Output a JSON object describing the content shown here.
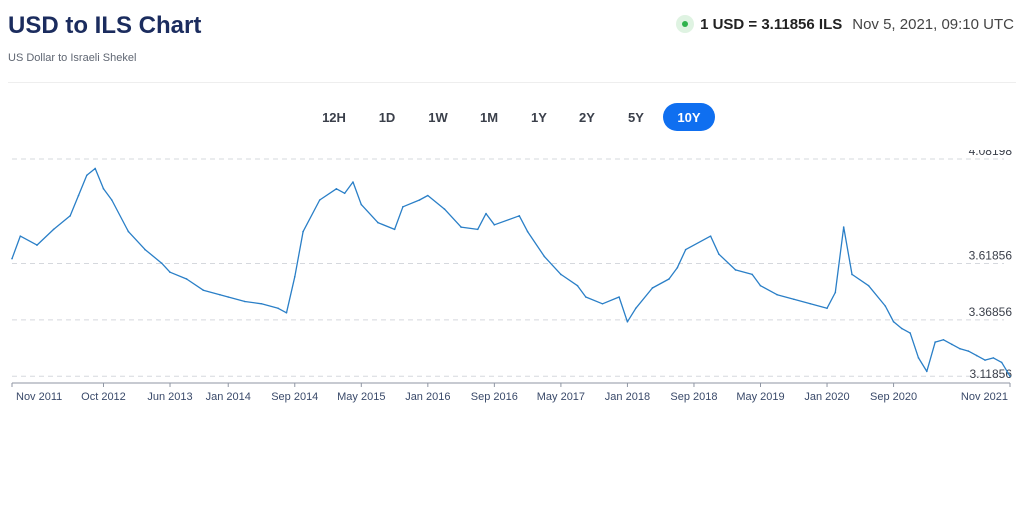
{
  "header": {
    "title": "USD to ILS Chart",
    "subtitle": "US Dollar to Israeli Shekel",
    "rate_text": "1 USD = 3.11856 ILS",
    "timestamp": "Nov 5, 2021, 09:10 UTC",
    "live_icon": "live-status-dot-icon"
  },
  "ranges": {
    "options": [
      "12H",
      "1D",
      "1W",
      "1M",
      "1Y",
      "2Y",
      "5Y",
      "10Y"
    ],
    "selected": "10Y"
  },
  "colors": {
    "line": "#2a7fc7",
    "accent": "#0f6ff0",
    "title": "#1b2c5e",
    "grid": "#d5d8dd"
  },
  "chart_data": {
    "type": "line",
    "title": "",
    "xlabel": "",
    "ylabel": "",
    "ylim": [
      3.0885,
      4.122
    ],
    "grid": "horizontal dashed",
    "y_ticks": [
      "4.08198",
      "3.61856",
      "3.36856",
      "3.11856"
    ],
    "x_ticks": [
      "Nov 2011",
      "Oct 2012",
      "Jun 2013",
      "Jan 2014",
      "Sep 2014",
      "May 2015",
      "Jan 2016",
      "Sep 2016",
      "May 2017",
      "Jan 2018",
      "Sep 2018",
      "May 2019",
      "Jan 2020",
      "Sep 2020",
      "Nov 2021"
    ],
    "x_range": [
      "Nov 2011",
      "Nov 2021"
    ],
    "series": [
      {
        "x": [
          "Nov 2011",
          "Dec 2011",
          "Feb 2012",
          "Apr 2012",
          "Jun 2012",
          "Jul 2012",
          "Aug 2012",
          "Sep 2012",
          "Oct 2012",
          "Nov 2012",
          "Jan 2013",
          "Mar 2013",
          "May 2013",
          "Jun 2013",
          "Aug 2013",
          "Oct 2013",
          "Dec 2013",
          "Jan 2014",
          "Mar 2014",
          "May 2014",
          "Jul 2014",
          "Aug 2014",
          "Sep 2014",
          "Oct 2014",
          "Dec 2014",
          "Feb 2015",
          "Mar 2015",
          "Apr 2015",
          "May 2015",
          "Jul 2015",
          "Sep 2015",
          "Oct 2015",
          "Dec 2015",
          "Jan 2016",
          "Mar 2016",
          "May 2016",
          "Jul 2016",
          "Aug 2016",
          "Sep 2016",
          "Dec 2016",
          "Jan 2017",
          "Mar 2017",
          "May 2017",
          "Jul 2017",
          "Aug 2017",
          "Oct 2017",
          "Dec 2017",
          "Jan 2018",
          "Feb 2018",
          "Apr 2018",
          "Jun 2018",
          "Jul 2018",
          "Aug 2018",
          "Nov 2018",
          "Dec 2018",
          "Feb 2019",
          "Apr 2019",
          "May 2019",
          "Jul 2019",
          "Sep 2019",
          "Nov 2019",
          "Jan 2020",
          "Feb 2020",
          "Mar 2020",
          "Apr 2020",
          "Jun 2020",
          "Aug 2020",
          "Sep 2020",
          "Oct 2020",
          "Nov 2020",
          "Dec 2020",
          "Jan 2021",
          "Feb 2021",
          "Mar 2021",
          "Apr 2021",
          "May 2021",
          "Jun 2021",
          "Jul 2021",
          "Aug 2021",
          "Sep 2021",
          "Oct 2021",
          "Nov 2021"
        ],
        "values": [
          3.64,
          3.74,
          3.7,
          3.77,
          3.83,
          3.92,
          4.01,
          4.04,
          3.95,
          3.9,
          3.76,
          3.68,
          3.62,
          3.58,
          3.55,
          3.5,
          3.48,
          3.47,
          3.45,
          3.44,
          3.42,
          3.4,
          3.56,
          3.76,
          3.9,
          3.95,
          3.93,
          3.98,
          3.88,
          3.8,
          3.77,
          3.87,
          3.9,
          3.92,
          3.86,
          3.78,
          3.77,
          3.84,
          3.79,
          3.83,
          3.76,
          3.65,
          3.57,
          3.52,
          3.47,
          3.44,
          3.47,
          3.36,
          3.42,
          3.51,
          3.55,
          3.6,
          3.68,
          3.74,
          3.66,
          3.59,
          3.57,
          3.52,
          3.48,
          3.46,
          3.44,
          3.42,
          3.49,
          3.78,
          3.57,
          3.52,
          3.43,
          3.36,
          3.33,
          3.31,
          3.2,
          3.14,
          3.27,
          3.28,
          3.26,
          3.24,
          3.23,
          3.21,
          3.19,
          3.2,
          3.18,
          3.11856
        ]
      }
    ]
  }
}
